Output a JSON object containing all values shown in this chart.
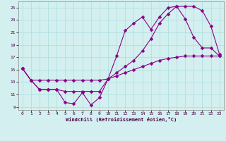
{
  "xlabel": "Windchill (Refroidissement éolien,°C)",
  "bg_color": "#d4efef",
  "grid_color": "#aadddd",
  "line_color": "#880088",
  "xlim": [
    -0.5,
    23.5
  ],
  "ylim": [
    8.5,
    26.0
  ],
  "yticks": [
    9,
    11,
    13,
    15,
    17,
    19,
    21,
    23,
    25
  ],
  "xticks": [
    0,
    1,
    2,
    3,
    4,
    5,
    6,
    7,
    8,
    9,
    10,
    11,
    12,
    13,
    14,
    15,
    16,
    17,
    18,
    19,
    20,
    21,
    22,
    23
  ],
  "line1_x": [
    0,
    1,
    2,
    3,
    4,
    5,
    6,
    7,
    8,
    9,
    10,
    11,
    12,
    13,
    14,
    15,
    16,
    17,
    18,
    19,
    20,
    21,
    22,
    23
  ],
  "line1_y": [
    15.2,
    13.3,
    11.8,
    11.8,
    11.8,
    9.7,
    9.5,
    11.3,
    9.3,
    10.5,
    13.5,
    17.2,
    21.3,
    22.5,
    23.5,
    21.5,
    23.5,
    25.0,
    25.2,
    23.2,
    20.2,
    18.5,
    18.5,
    17.2
  ],
  "line2_x": [
    0,
    1,
    2,
    3,
    4,
    5,
    6,
    7,
    8,
    9,
    10,
    11,
    12,
    13,
    14,
    15,
    16,
    17,
    18,
    19,
    20,
    21,
    22,
    23
  ],
  "line2_y": [
    15.2,
    13.3,
    13.3,
    13.3,
    13.3,
    13.3,
    13.3,
    13.3,
    13.3,
    13.3,
    13.5,
    14.0,
    14.5,
    15.0,
    15.5,
    16.0,
    16.5,
    16.8,
    17.0,
    17.2,
    17.2,
    17.2,
    17.2,
    17.2
  ],
  "line3_x": [
    0,
    1,
    2,
    3,
    4,
    5,
    6,
    7,
    8,
    9,
    10,
    11,
    12,
    13,
    14,
    15,
    16,
    17,
    18,
    19,
    20,
    21,
    22,
    23
  ],
  "line3_y": [
    15.2,
    13.3,
    11.8,
    11.8,
    11.8,
    11.5,
    11.5,
    11.5,
    11.5,
    11.5,
    13.5,
    14.5,
    15.5,
    16.5,
    18.0,
    20.0,
    22.5,
    24.0,
    25.2,
    25.2,
    25.2,
    24.5,
    22.0,
    17.5
  ]
}
